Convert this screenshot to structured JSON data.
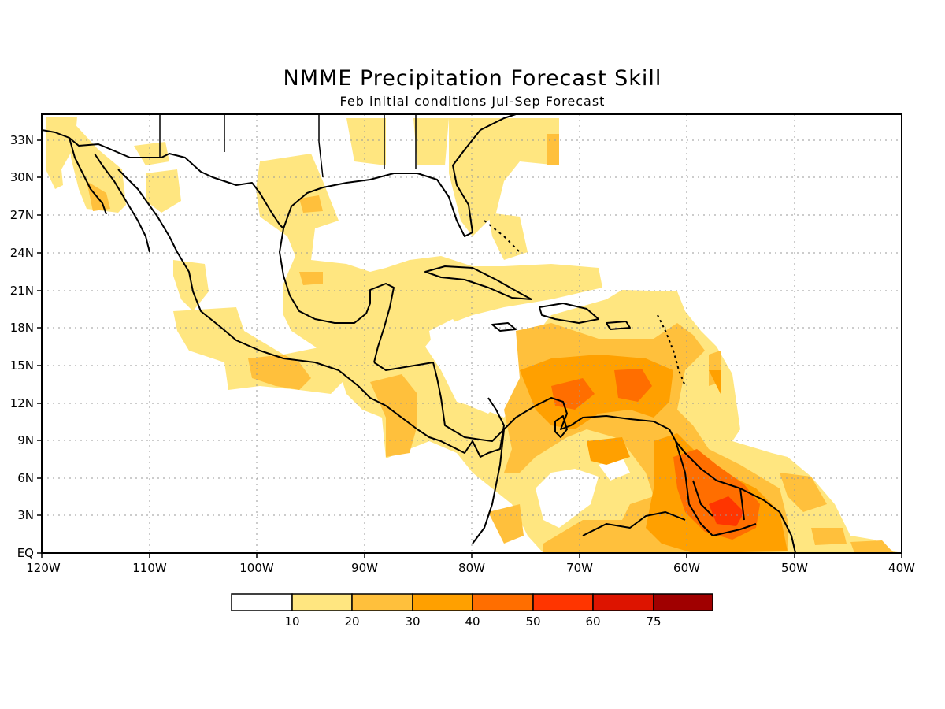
{
  "title": "NMME Precipitation Forecast Skill",
  "subtitle": "Feb initial conditions  Jul-Sep Forecast",
  "map": {
    "lon_labels": [
      "120W",
      "110W",
      "100W",
      "90W",
      "80W",
      "70W",
      "60W",
      "50W",
      "40W"
    ],
    "lat_labels": [
      "33N",
      "30N",
      "27N",
      "24N",
      "21N",
      "18N",
      "15N",
      "12N",
      "9N",
      "6N",
      "3N",
      "EQ"
    ],
    "grid": true
  },
  "legend": {
    "bins": [
      {
        "label": "",
        "color": "#ffffff"
      },
      {
        "label": "10",
        "color": "#ffe680"
      },
      {
        "label": "20",
        "color": "#ffc03c"
      },
      {
        "label": "30",
        "color": "#ffa000"
      },
      {
        "label": "40",
        "color": "#ff6e00"
      },
      {
        "label": "50",
        "color": "#ff3500"
      },
      {
        "label": "60",
        "color": "#dd1400"
      },
      {
        "label": "75",
        "color": "#a00000"
      }
    ]
  },
  "colors": {
    "level1": "#ffe680",
    "level2": "#ffc03c",
    "level3": "#ffa000",
    "level4": "#ff6e00",
    "level5": "#ff3500",
    "coast": "#000000"
  }
}
